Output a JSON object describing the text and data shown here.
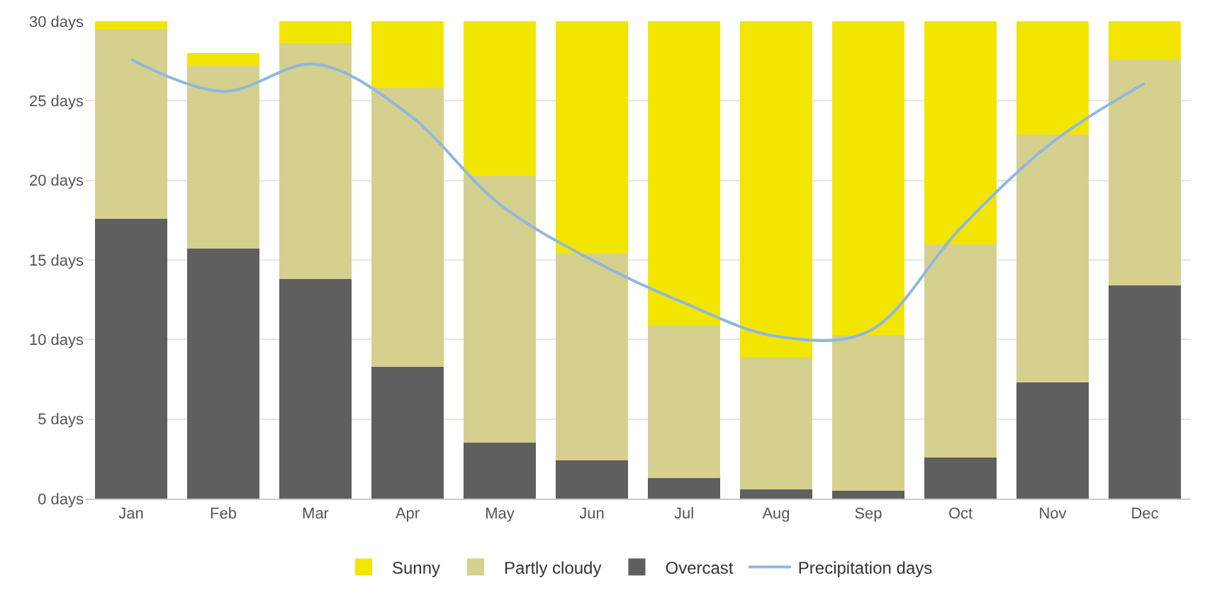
{
  "chart_data": {
    "type": "bar",
    "stacked": true,
    "categories": [
      "Jan",
      "Feb",
      "Mar",
      "Apr",
      "May",
      "Jun",
      "Jul",
      "Aug",
      "Sep",
      "Oct",
      "Nov",
      "Dec"
    ],
    "series": [
      {
        "name": "Overcast",
        "color": "#5f5f5f",
        "values": [
          17.6,
          15.7,
          13.8,
          8.3,
          3.5,
          2.4,
          1.3,
          0.6,
          0.5,
          2.6,
          7.3,
          13.4
        ]
      },
      {
        "name": "Partly cloudy",
        "color": "#d6d08f",
        "values": [
          11.9,
          11.5,
          14.8,
          17.5,
          16.8,
          13.0,
          9.6,
          8.3,
          9.8,
          13.4,
          15.6,
          14.2
        ]
      },
      {
        "name": "Sunny",
        "color": "#f2e600",
        "values": [
          0.5,
          0.8,
          1.4,
          4.2,
          9.7,
          14.6,
          19.1,
          21.1,
          19.7,
          14.0,
          7.1,
          2.4
        ]
      },
      {
        "name": "Precipitation days",
        "type": "line",
        "color": "#8fb8de",
        "values": [
          27.6,
          25.6,
          27.3,
          24.2,
          18.5,
          15.0,
          12.3,
          10.2,
          10.5,
          17.0,
          22.4,
          26.1
        ]
      }
    ],
    "ylim": [
      0,
      30
    ],
    "yticks": [
      {
        "value": 0,
        "label": "0 days"
      },
      {
        "value": 5,
        "label": "5 days"
      },
      {
        "value": 10,
        "label": "10 days"
      },
      {
        "value": 15,
        "label": "15 days"
      },
      {
        "value": 20,
        "label": "20 days"
      },
      {
        "value": 25,
        "label": "25 days"
      },
      {
        "value": 30,
        "label": "30 days"
      }
    ],
    "grid": "y",
    "legend": "bottom",
    "marker": "none",
    "line_style": "solid"
  }
}
